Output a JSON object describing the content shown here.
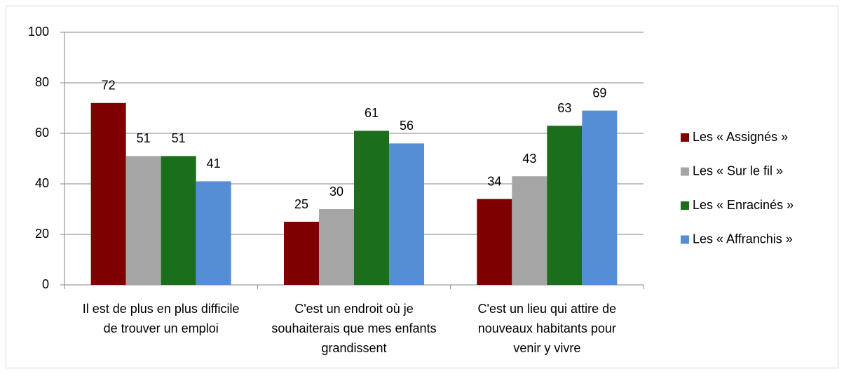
{
  "chart_data": {
    "type": "bar",
    "categories": [
      "Il est de plus en plus difficile de trouver un emploi",
      "C'est un endroit où je souhaiterais que mes enfants grandissent",
      "C'est un lieu qui attire de nouveaux habitants pour venir y vivre"
    ],
    "series": [
      {
        "name": "Les « Assignés »",
        "color": "#7f0000",
        "values": [
          72,
          25,
          34
        ]
      },
      {
        "name": "Les « Sur le fil »",
        "color": "#a6a6a6",
        "values": [
          51,
          30,
          43
        ]
      },
      {
        "name": "Les « Enracinés »",
        "color": "#1b6e1b",
        "values": [
          51,
          61,
          63
        ]
      },
      {
        "name": "Les « Affranchis »",
        "color": "#558ed5",
        "values": [
          41,
          56,
          69
        ]
      }
    ],
    "ylim": [
      0,
      100
    ],
    "yticks": [
      0,
      20,
      40,
      60,
      80,
      100
    ],
    "grid": true,
    "legend": "right"
  }
}
